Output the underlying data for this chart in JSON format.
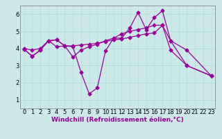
{
  "background_color": "#cce8e8",
  "grid_color": "#aadddd",
  "line_color": "#990099",
  "marker": "D",
  "markersize": 2.5,
  "linewidth": 0.9,
  "xlabel": "Windchill (Refroidissement éolien,°C)",
  "xlabel_fontsize": 6.5,
  "tick_fontsize": 6,
  "xlim": [
    -0.5,
    23.5
  ],
  "ylim": [
    0.5,
    6.5
  ],
  "yticks": [
    1,
    2,
    3,
    4,
    5,
    6
  ],
  "xticks": [
    0,
    1,
    2,
    3,
    4,
    5,
    6,
    7,
    8,
    9,
    10,
    11,
    12,
    13,
    14,
    15,
    16,
    17,
    18,
    19,
    20,
    21,
    22,
    23
  ],
  "series": [
    {
      "x": [
        0,
        1,
        2,
        3,
        4,
        5,
        6,
        7,
        8,
        9,
        10,
        11,
        12,
        13,
        14,
        15,
        16,
        17,
        18,
        20,
        23
      ],
      "y": [
        3.95,
        3.55,
        3.9,
        4.45,
        4.5,
        4.15,
        4.1,
        2.6,
        1.35,
        1.7,
        3.85,
        4.6,
        4.6,
        5.2,
        6.1,
        5.1,
        5.8,
        6.2,
        4.45,
        3.0,
        2.4
      ]
    },
    {
      "x": [
        0,
        1,
        2,
        3,
        4,
        5,
        6,
        7,
        8,
        9,
        10,
        11,
        12,
        13,
        14,
        15,
        16,
        17,
        18,
        20,
        23
      ],
      "y": [
        4.0,
        3.9,
        4.0,
        4.45,
        4.1,
        4.15,
        4.15,
        4.2,
        4.25,
        4.3,
        4.4,
        4.5,
        4.55,
        4.65,
        4.75,
        4.85,
        4.9,
        5.35,
        4.45,
        3.9,
        2.4
      ]
    },
    {
      "x": [
        0,
        1,
        2,
        3,
        4,
        5,
        6,
        7,
        8,
        9,
        10,
        11,
        12,
        13,
        14,
        15,
        16,
        17,
        18,
        20,
        23
      ],
      "y": [
        3.95,
        3.55,
        3.9,
        4.45,
        4.5,
        4.15,
        3.5,
        3.9,
        4.1,
        4.25,
        4.45,
        4.6,
        4.85,
        5.0,
        5.1,
        5.2,
        5.35,
        5.35,
        3.9,
        3.0,
        2.4
      ]
    }
  ]
}
